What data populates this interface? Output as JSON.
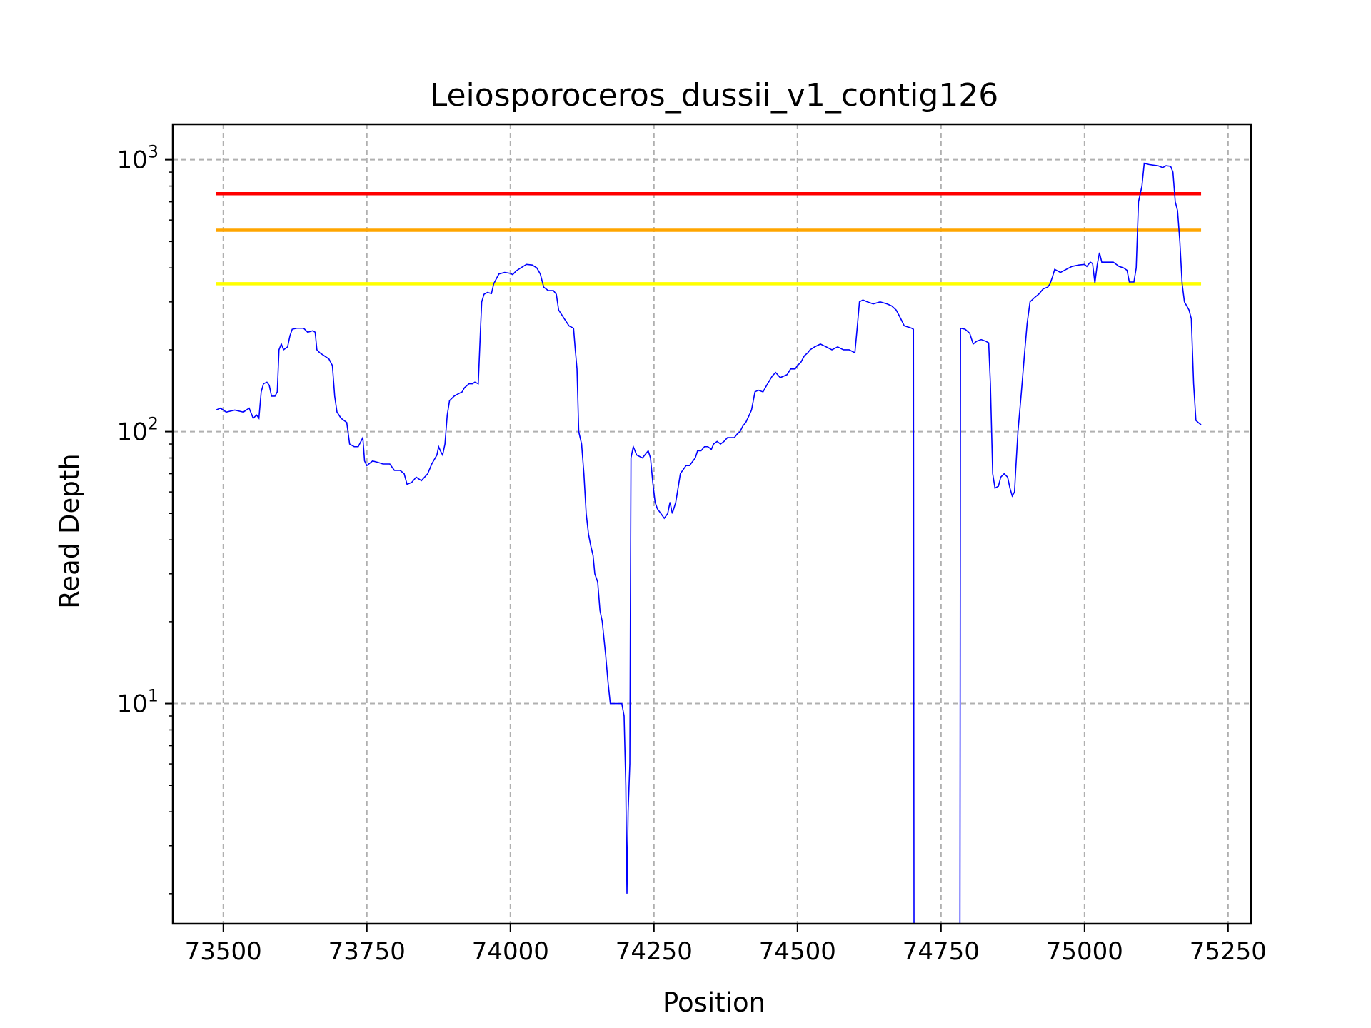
{
  "chart_data": {
    "type": "line",
    "title": "Leiosporoceros_dussii_v1_contig126",
    "xlabel": "Position",
    "ylabel": "Read Depth",
    "xscale": "linear",
    "yscale": "log",
    "xlim": [
      73412,
      75290
    ],
    "ylim": [
      1.55,
      1350
    ],
    "xticks": [
      73500,
      73750,
      74000,
      74250,
      74500,
      74750,
      75000,
      75250
    ],
    "xtick_labels": [
      "73500",
      "73750",
      "74000",
      "74250",
      "74500",
      "74750",
      "75000",
      "75250"
    ],
    "yticks_major": [
      {
        "value": 10,
        "base": "10",
        "exp": "1"
      },
      {
        "value": 100,
        "base": "10",
        "exp": "2"
      },
      {
        "value": 1000,
        "base": "10",
        "exp": "3"
      }
    ],
    "grid": true,
    "thresholds": [
      {
        "value": 750,
        "color": "#ff0000",
        "x": [
          73487,
          75203
        ]
      },
      {
        "value": 550,
        "color": "#ffa500",
        "x": [
          73487,
          75203
        ]
      },
      {
        "value": 350,
        "color": "#ffff00",
        "x": [
          73487,
          75203
        ]
      }
    ],
    "series": [
      {
        "color": "#0000ff",
        "segments": [
          [
            [
              73487,
              120
            ],
            [
              73495,
              122
            ],
            [
              73505,
              118
            ],
            [
              73520,
              120
            ],
            [
              73535,
              118
            ],
            [
              73545,
              122
            ],
            [
              73552,
              112
            ],
            [
              73558,
              115
            ],
            [
              73562,
              112
            ],
            [
              73566,
              140
            ],
            [
              73570,
              150
            ],
            [
              73576,
              152
            ],
            [
              73580,
              148
            ],
            [
              73584,
              135
            ],
            [
              73590,
              135
            ],
            [
              73594,
              140
            ],
            [
              73597,
              200
            ],
            [
              73601,
              210
            ],
            [
              73605,
              200
            ],
            [
              73612,
              205
            ],
            [
              73616,
              225
            ],
            [
              73620,
              238
            ],
            [
              73628,
              240
            ],
            [
              73640,
              240
            ],
            [
              73647,
              232
            ],
            [
              73656,
              235
            ],
            [
              73660,
              232
            ],
            [
              73663,
              200
            ],
            [
              73668,
              195
            ],
            [
              73676,
              190
            ],
            [
              73684,
              185
            ],
            [
              73690,
              175
            ],
            [
              73694,
              135
            ],
            [
              73698,
              118
            ],
            [
              73705,
              112
            ],
            [
              73715,
              108
            ],
            [
              73720,
              90
            ],
            [
              73728,
              88
            ],
            [
              73735,
              88
            ],
            [
              73743,
              95
            ],
            [
              73746,
              78
            ],
            [
              73750,
              75
            ],
            [
              73760,
              78
            ],
            [
              73770,
              77
            ],
            [
              73778,
              76
            ],
            [
              73790,
              76
            ],
            [
              73798,
              72
            ],
            [
              73808,
              72
            ],
            [
              73815,
              70
            ],
            [
              73820,
              64
            ],
            [
              73828,
              65
            ],
            [
              73836,
              68
            ],
            [
              73845,
              66
            ],
            [
              73856,
              70
            ],
            [
              73863,
              76
            ],
            [
              73872,
              82
            ],
            [
              73875,
              88
            ],
            [
              73878,
              85
            ],
            [
              73882,
              82
            ],
            [
              73886,
              90
            ],
            [
              73890,
              115
            ],
            [
              73894,
              130
            ],
            [
              73902,
              135
            ],
            [
              73910,
              138
            ],
            [
              73916,
              140
            ],
            [
              73920,
              145
            ],
            [
              73928,
              150
            ],
            [
              73934,
              150
            ],
            [
              73938,
              152
            ],
            [
              73944,
              150
            ],
            [
              73946,
              190
            ],
            [
              73948,
              240
            ],
            [
              73950,
              300
            ],
            [
              73954,
              320
            ],
            [
              73960,
              325
            ],
            [
              73967,
              322
            ],
            [
              73971,
              350
            ],
            [
              73980,
              380
            ],
            [
              73990,
              385
            ],
            [
              74000,
              382
            ],
            [
              74004,
              378
            ],
            [
              74010,
              390
            ],
            [
              74018,
              400
            ],
            [
              74028,
              412
            ],
            [
              74038,
              410
            ],
            [
              74046,
              400
            ],
            [
              74052,
              380
            ],
            [
              74058,
              340
            ],
            [
              74066,
              330
            ],
            [
              74075,
              330
            ],
            [
              74080,
              320
            ],
            [
              74084,
              280
            ],
            [
              74094,
              260
            ],
            [
              74102,
              245
            ],
            [
              74110,
              240
            ],
            [
              74113,
              200
            ],
            [
              74116,
              170
            ],
            [
              74119,
              100
            ],
            [
              74124,
              90
            ],
            [
              74128,
              70
            ],
            [
              74132,
              50
            ],
            [
              74136,
              42
            ],
            [
              74140,
              38
            ],
            [
              74144,
              35
            ],
            [
              74147,
              30
            ],
            [
              74152,
              28
            ],
            [
              74156,
              22
            ],
            [
              74160,
              20
            ],
            [
              74166,
              15
            ],
            [
              74170,
              12
            ],
            [
              74174,
              10
            ],
            [
              74194,
              10
            ],
            [
              74198,
              9
            ],
            [
              74201,
              5
            ],
            [
              74203,
              2
            ],
            [
              74205,
              4
            ],
            [
              74208,
              6
            ],
            [
              74210,
              80
            ],
            [
              74214,
              88
            ],
            [
              74220,
              82
            ],
            [
              74230,
              80
            ],
            [
              74240,
              85
            ],
            [
              74244,
              80
            ],
            [
              74248,
              65
            ],
            [
              74252,
              55
            ],
            [
              74256,
              52
            ],
            [
              74262,
              50
            ],
            [
              74268,
              48
            ],
            [
              74274,
              50
            ],
            [
              74278,
              55
            ],
            [
              74282,
              50
            ],
            [
              74288,
              55
            ],
            [
              74292,
              62
            ],
            [
              74296,
              70
            ],
            [
              74300,
              72
            ],
            [
              74306,
              75
            ],
            [
              74312,
              75
            ],
            [
              74318,
              78
            ],
            [
              74322,
              80
            ],
            [
              74326,
              85
            ],
            [
              74332,
              85
            ],
            [
              74338,
              88
            ],
            [
              74344,
              88
            ],
            [
              74350,
              86
            ],
            [
              74354,
              90
            ],
            [
              74360,
              92
            ],
            [
              74366,
              90
            ],
            [
              74372,
              92
            ],
            [
              74378,
              95
            ],
            [
              74384,
              95
            ],
            [
              74390,
              95
            ],
            [
              74395,
              98
            ],
            [
              74400,
              100
            ],
            [
              74405,
              105
            ],
            [
              74410,
              108
            ],
            [
              74416,
              115
            ],
            [
              74420,
              120
            ],
            [
              74426,
              140
            ],
            [
              74432,
              142
            ],
            [
              74440,
              140
            ],
            [
              74448,
              150
            ],
            [
              74456,
              160
            ],
            [
              74462,
              165
            ],
            [
              74470,
              158
            ],
            [
              74476,
              160
            ],
            [
              74482,
              162
            ],
            [
              74488,
              170
            ],
            [
              74496,
              170
            ],
            [
              74500,
              175
            ],
            [
              74506,
              180
            ],
            [
              74512,
              190
            ],
            [
              74518,
              195
            ],
            [
              74522,
              200
            ],
            [
              74530,
              205
            ],
            [
              74540,
              210
            ],
            [
              74550,
              205
            ],
            [
              74560,
              200
            ],
            [
              74570,
              205
            ],
            [
              74580,
              200
            ],
            [
              74590,
              200
            ],
            [
              74600,
              195
            ],
            [
              74604,
              240
            ],
            [
              74608,
              300
            ],
            [
              74614,
              305
            ],
            [
              74622,
              300
            ],
            [
              74632,
              295
            ],
            [
              74644,
              300
            ],
            [
              74656,
              295
            ],
            [
              74664,
              290
            ],
            [
              74672,
              280
            ],
            [
              74680,
              260
            ],
            [
              74686,
              245
            ],
            [
              74694,
              242
            ],
            [
              74699,
              240
            ],
            [
              74702,
              238
            ],
            [
              74703,
              1.5
            ]
          ],
          [
            [
              74783,
              1.5
            ],
            [
              74784,
              240
            ],
            [
              74792,
              238
            ],
            [
              74800,
              230
            ],
            [
              74806,
              210
            ],
            [
              74812,
              215
            ],
            [
              74820,
              218
            ],
            [
              74828,
              215
            ],
            [
              74833,
              212
            ],
            [
              74836,
              150
            ],
            [
              74840,
              70
            ],
            [
              74844,
              62
            ],
            [
              74850,
              63
            ],
            [
              74854,
              68
            ],
            [
              74860,
              70
            ],
            [
              74866,
              68
            ],
            [
              74870,
              62
            ],
            [
              74874,
              58
            ],
            [
              74878,
              60
            ],
            [
              74880,
              72
            ],
            [
              74884,
              100
            ],
            [
              74890,
              140
            ],
            [
              74896,
              200
            ],
            [
              74900,
              250
            ],
            [
              74905,
              300
            ],
            [
              74912,
              310
            ],
            [
              74920,
              320
            ],
            [
              74928,
              335
            ],
            [
              74936,
              340
            ],
            [
              74940,
              350
            ],
            [
              74944,
              370
            ],
            [
              74948,
              395
            ],
            [
              74958,
              385
            ],
            [
              74968,
              395
            ],
            [
              74978,
              405
            ],
            [
              74990,
              410
            ],
            [
              75000,
              412
            ],
            [
              75004,
              405
            ],
            [
              75010,
              420
            ],
            [
              75014,
              415
            ],
            [
              75018,
              352
            ],
            [
              75022,
              410
            ],
            [
              75026,
              455
            ],
            [
              75030,
              420
            ],
            [
              75036,
              420
            ],
            [
              75044,
              420
            ],
            [
              75050,
              420
            ],
            [
              75060,
              405
            ],
            [
              75068,
              400
            ],
            [
              75074,
              392
            ],
            [
              75078,
              355
            ],
            [
              75086,
              355
            ],
            [
              75090,
              400
            ],
            [
              75094,
              700
            ],
            [
              75100,
              800
            ],
            [
              75104,
              970
            ],
            [
              75112,
              960
            ],
            [
              75120,
              955
            ],
            [
              75128,
              950
            ],
            [
              75136,
              935
            ],
            [
              75142,
              950
            ],
            [
              75150,
              945
            ],
            [
              75154,
              900
            ],
            [
              75158,
              700
            ],
            [
              75162,
              650
            ],
            [
              75166,
              500
            ],
            [
              75170,
              350
            ],
            [
              75174,
              300
            ],
            [
              75178,
              290
            ],
            [
              75182,
              280
            ],
            [
              75186,
              260
            ],
            [
              75190,
              150
            ],
            [
              75194,
              110
            ],
            [
              75198,
              108
            ],
            [
              75203,
              106
            ]
          ]
        ]
      }
    ]
  }
}
